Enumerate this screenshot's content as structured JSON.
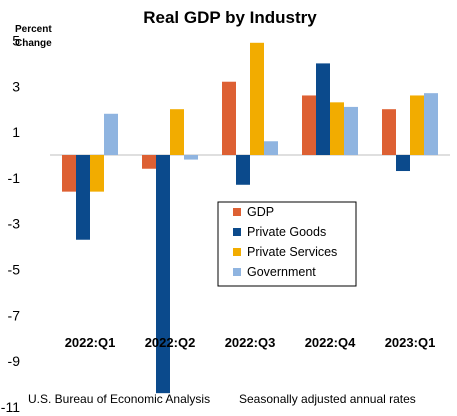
{
  "chart_data": {
    "type": "bar",
    "title": "Real GDP by Industry",
    "ylabel_line1": "Percent",
    "ylabel_line2": "Change",
    "categories": [
      "2022:Q1",
      "2022:Q2",
      "2022:Q3",
      "2022:Q4",
      "2023:Q1"
    ],
    "series": [
      {
        "name": "GDP",
        "color": "#dd6033",
        "values": [
          -1.6,
          -0.6,
          3.2,
          2.6,
          2.0
        ]
      },
      {
        "name": "Private Goods",
        "color": "#0b4a8c",
        "values": [
          -3.7,
          -10.4,
          -1.3,
          4.0,
          -0.7
        ]
      },
      {
        "name": "Private Services",
        "color": "#f2ac00",
        "values": [
          -1.6,
          2.0,
          4.9,
          2.3,
          2.6
        ]
      },
      {
        "name": "Government",
        "color": "#8fb4e0",
        "values": [
          1.8,
          -0.2,
          0.6,
          2.1,
          2.7
        ]
      }
    ],
    "yticks": [
      5,
      3,
      1,
      -1,
      -3,
      -5,
      -7,
      -9,
      -11
    ],
    "ylim": [
      -11,
      5
    ],
    "grid": false,
    "legend_position": "lower-center",
    "footer_left": "U.S. Bureau of Economic Analysis",
    "footer_right": "Seasonally adjusted annual rates"
  }
}
